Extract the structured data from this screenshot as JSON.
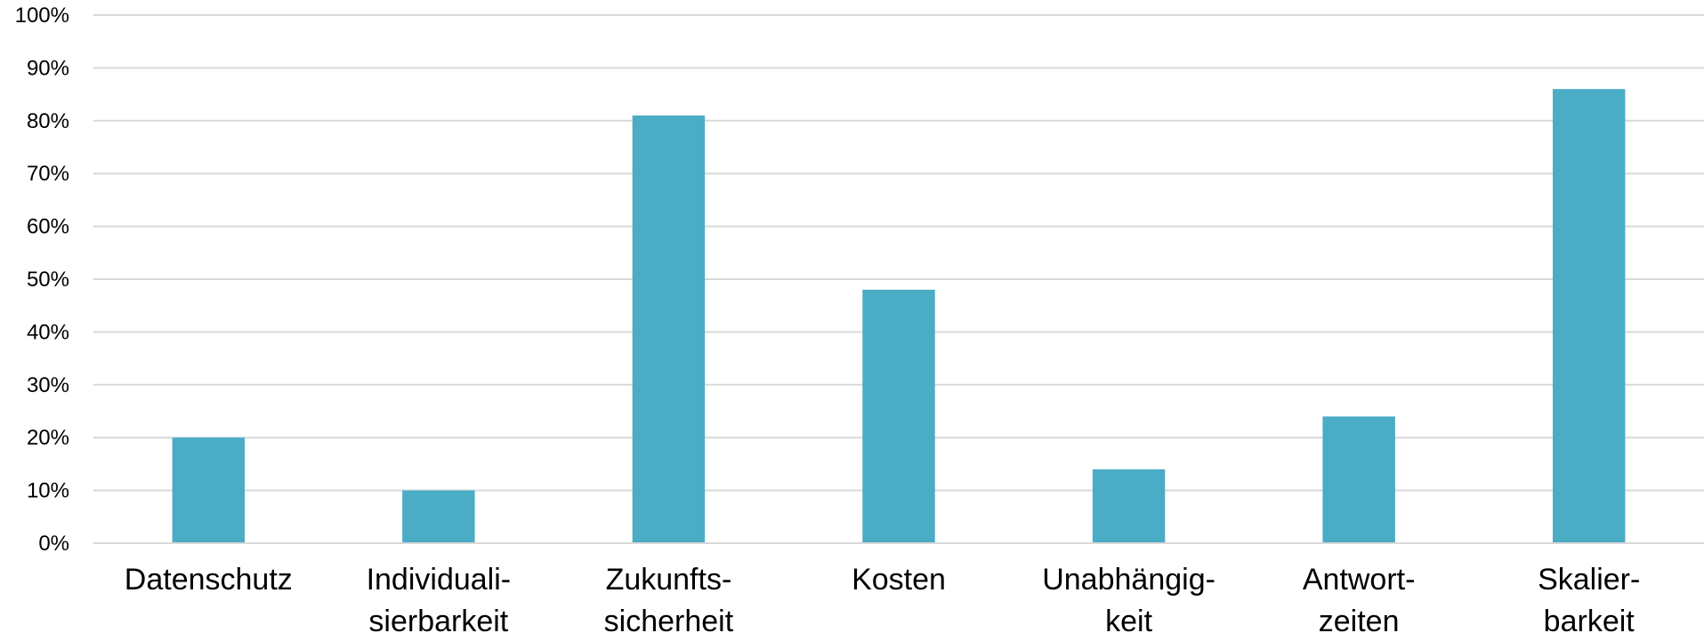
{
  "chart_data": {
    "type": "bar",
    "categories": [
      [
        "Datenschutz"
      ],
      [
        "Individuali-",
        "sierbarkeit"
      ],
      [
        "Zukunfts-",
        "sicherheit"
      ],
      [
        "Kosten"
      ],
      [
        "Unabhängig-",
        "keit"
      ],
      [
        "Antwort-",
        "zeiten"
      ],
      [
        "Skalier-",
        "barkeit"
      ]
    ],
    "values": [
      20,
      10,
      81,
      48,
      14,
      24,
      86
    ],
    "ylim": [
      0,
      100
    ],
    "y_ticks": [
      "0%",
      "10%",
      "20%",
      "30%",
      "40%",
      "50%",
      "60%",
      "70%",
      "80%",
      "90%",
      "100%"
    ],
    "grid": true,
    "legend": "none",
    "title": "",
    "xlabel": "",
    "ylabel": "",
    "colors": {
      "bar": "#4bacc6",
      "grid": "#d9d9d9"
    }
  }
}
